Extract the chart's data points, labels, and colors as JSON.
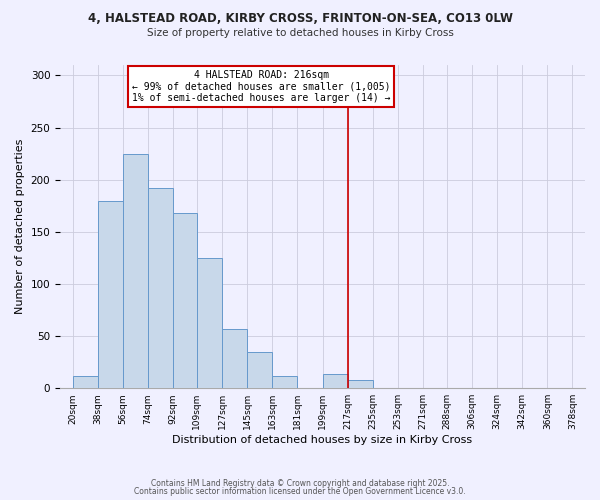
{
  "title_line1": "4, HALSTEAD ROAD, KIRBY CROSS, FRINTON-ON-SEA, CO13 0LW",
  "title_line2": "Size of property relative to detached houses in Kirby Cross",
  "xlabel": "Distribution of detached houses by size in Kirby Cross",
  "ylabel": "Number of detached properties",
  "bin_labels": [
    "20sqm",
    "38sqm",
    "56sqm",
    "74sqm",
    "92sqm",
    "109sqm",
    "127sqm",
    "145sqm",
    "163sqm",
    "181sqm",
    "199sqm",
    "217sqm",
    "235sqm",
    "253sqm",
    "271sqm",
    "288sqm",
    "306sqm",
    "324sqm",
    "342sqm",
    "360sqm",
    "378sqm"
  ],
  "bin_left_edges": [
    20,
    38,
    56,
    74,
    92,
    109,
    127,
    145,
    163,
    181,
    199,
    217,
    235,
    253,
    271,
    288,
    306,
    324,
    342,
    360
  ],
  "bin_widths": [
    18,
    18,
    18,
    18,
    17,
    18,
    18,
    18,
    18,
    18,
    18,
    18,
    18,
    18,
    17,
    18,
    18,
    18,
    18,
    18
  ],
  "bar_heights": [
    12,
    180,
    225,
    192,
    168,
    125,
    57,
    35,
    12,
    0,
    14,
    8,
    0,
    0,
    0,
    0,
    0,
    0,
    0,
    0
  ],
  "bar_color": "#c8d8ea",
  "bar_edge_color": "#6699cc",
  "vline_x": 217,
  "vline_color": "#cc0000",
  "ylim": [
    0,
    310
  ],
  "yticks": [
    0,
    50,
    100,
    150,
    200,
    250,
    300
  ],
  "annotation_title": "4 HALSTEAD ROAD: 216sqm",
  "annotation_line2": "← 99% of detached houses are smaller (1,005)",
  "annotation_line3": "1% of semi-detached houses are larger (14) →",
  "annotation_box_color": "#ffffff",
  "annotation_box_edge_color": "#cc0000",
  "footer_line1": "Contains HM Land Registry data © Crown copyright and database right 2025.",
  "footer_line2": "Contains public sector information licensed under the Open Government Licence v3.0.",
  "background_color": "#f0f0ff",
  "grid_color": "#ccccdd",
  "xlim_left": 11,
  "xlim_right": 387
}
